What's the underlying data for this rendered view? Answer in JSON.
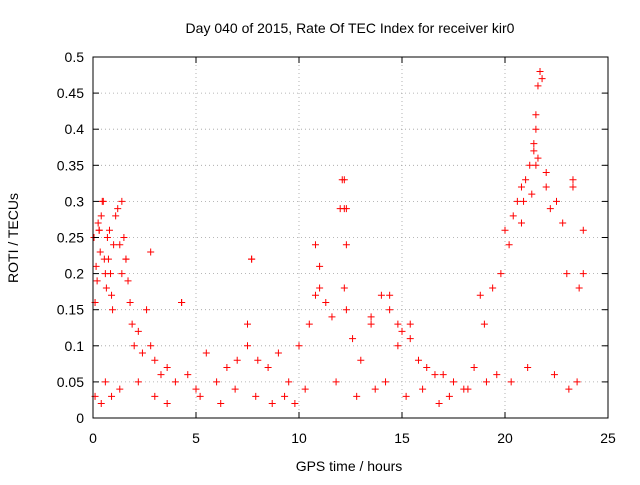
{
  "chart_data": {
    "type": "scatter",
    "title": "Day 040 of 2015, Rate Of TEC Index for receiver kir0",
    "xlabel": "GPS time / hours",
    "ylabel": "ROTI / TECUs",
    "xlim": [
      0,
      25
    ],
    "ylim": [
      0,
      0.5
    ],
    "xticks": [
      "0",
      "5",
      "10",
      "15",
      "20",
      "25"
    ],
    "yticks": [
      "0",
      "0.05",
      "0.1",
      "0.15",
      "0.2",
      "0.25",
      "0.3",
      "0.35",
      "0.4",
      "0.45",
      "0.5"
    ],
    "grid": true,
    "marker": "+",
    "color": "#ff0000",
    "x": [
      0.05,
      0.1,
      0.15,
      0.2,
      0.25,
      0.3,
      0.35,
      0.4,
      0.45,
      0.5,
      0.55,
      0.6,
      0.65,
      0.7,
      0.75,
      0.8,
      0.85,
      0.9,
      0.95,
      1.0,
      1.1,
      1.2,
      1.3,
      1.4,
      1.5,
      1.6,
      1.7,
      1.8,
      1.9,
      2.0,
      2.2,
      2.4,
      2.6,
      2.8,
      3.0,
      3.3,
      3.6,
      4.0,
      4.3,
      4.6,
      5.0,
      5.5,
      6.0,
      6.5,
      7.0,
      7.5,
      7.7,
      8.0,
      8.5,
      9.0,
      9.5,
      10.0,
      10.5,
      10.8,
      11.0,
      11.3,
      11.6,
      12.0,
      12.1,
      12.2,
      12.3,
      12.6,
      13.0,
      13.5,
      14.0,
      14.4,
      14.8,
      15.0,
      15.4,
      15.8,
      16.2,
      16.6,
      17.0,
      17.5,
      18.0,
      18.5,
      18.8,
      19.0,
      19.4,
      19.8,
      20.0,
      20.2,
      20.4,
      20.6,
      20.8,
      21.0,
      21.2,
      21.4,
      21.5,
      21.6,
      21.8,
      22.0,
      22.2,
      22.5,
      22.8,
      23.0,
      23.3,
      23.6,
      0.3,
      0.6,
      1.4,
      1.6,
      2.8,
      4.3,
      4.3,
      7.5,
      7.7,
      10.8,
      11.0,
      12.2,
      12.2,
      12.3,
      12.3,
      13.5,
      14.4,
      14.8,
      15.4,
      20.8,
      20.9,
      21.3,
      21.4,
      21.5,
      21.6,
      21.7,
      21.5,
      22.0,
      23.3,
      23.8,
      23.8,
      0.1,
      0.4,
      0.9,
      1.3,
      2.2,
      3.0,
      3.6,
      5.2,
      6.2,
      6.9,
      7.9,
      8.7,
      9.3,
      9.8,
      10.3,
      11.8,
      12.8,
      13.7,
      14.2,
      15.2,
      16.0,
      16.8,
      17.3,
      18.2,
      19.1,
      19.6,
      20.3,
      21.1,
      22.4,
      23.1,
      23.5
    ],
    "y": [
      0.25,
      0.16,
      0.21,
      0.19,
      0.27,
      0.26,
      0.23,
      0.28,
      0.3,
      0.3,
      0.22,
      0.2,
      0.18,
      0.25,
      0.22,
      0.26,
      0.2,
      0.17,
      0.15,
      0.24,
      0.28,
      0.29,
      0.24,
      0.2,
      0.25,
      0.22,
      0.19,
      0.16,
      0.13,
      0.1,
      0.12,
      0.09,
      0.15,
      0.1,
      0.08,
      0.06,
      0.07,
      0.05,
      0.16,
      0.06,
      0.04,
      0.09,
      0.05,
      0.07,
      0.08,
      0.1,
      0.22,
      0.08,
      0.07,
      0.09,
      0.05,
      0.1,
      0.13,
      0.24,
      0.18,
      0.16,
      0.14,
      0.29,
      0.33,
      0.29,
      0.15,
      0.11,
      0.08,
      0.13,
      0.17,
      0.15,
      0.1,
      0.12,
      0.11,
      0.08,
      0.07,
      0.06,
      0.06,
      0.05,
      0.04,
      0.07,
      0.17,
      0.13,
      0.18,
      0.2,
      0.26,
      0.24,
      0.28,
      0.3,
      0.32,
      0.33,
      0.35,
      0.38,
      0.42,
      0.36,
      0.47,
      0.34,
      0.29,
      0.3,
      0.27,
      0.2,
      0.32,
      0.18,
      0.26,
      0.05,
      0.3,
      0.22,
      0.23,
      0.16,
      0.16,
      0.13,
      0.22,
      0.17,
      0.21,
      0.18,
      0.33,
      0.24,
      0.29,
      0.14,
      0.17,
      0.13,
      0.13,
      0.27,
      0.3,
      0.31,
      0.37,
      0.4,
      0.46,
      0.48,
      0.35,
      0.32,
      0.33,
      0.26,
      0.2,
      0.03,
      0.02,
      0.03,
      0.04,
      0.05,
      0.03,
      0.02,
      0.03,
      0.02,
      0.04,
      0.03,
      0.02,
      0.03,
      0.02,
      0.04,
      0.05,
      0.03,
      0.04,
      0.05,
      0.03,
      0.04,
      0.02,
      0.03,
      0.04,
      0.05,
      0.06,
      0.05,
      0.07,
      0.06,
      0.04,
      0.05
    ]
  }
}
